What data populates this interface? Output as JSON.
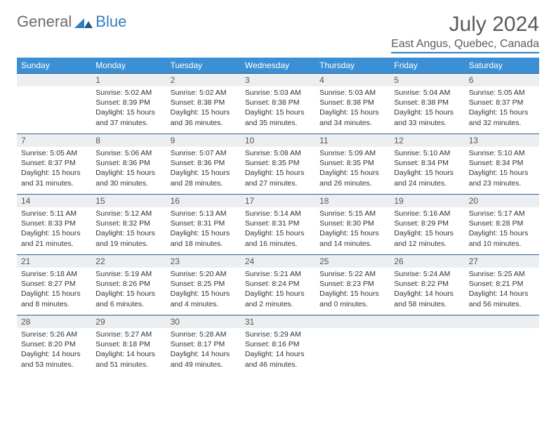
{
  "logo": {
    "general": "General",
    "blue": "Blue"
  },
  "title": "July 2024",
  "location": "East Angus, Quebec, Canada",
  "colors": {
    "header_bg": "#3b8fd4",
    "header_text": "#ffffff",
    "daynum_bg": "#eceff1",
    "border": "#2f5f8f",
    "logo_gray": "#6b6b6b",
    "logo_blue": "#2f7fbf"
  },
  "weekdays": [
    "Sunday",
    "Monday",
    "Tuesday",
    "Wednesday",
    "Thursday",
    "Friday",
    "Saturday"
  ],
  "weeks": [
    [
      {
        "n": "",
        "lines": []
      },
      {
        "n": "1",
        "lines": [
          "Sunrise: 5:02 AM",
          "Sunset: 8:39 PM",
          "Daylight: 15 hours and 37 minutes."
        ]
      },
      {
        "n": "2",
        "lines": [
          "Sunrise: 5:02 AM",
          "Sunset: 8:38 PM",
          "Daylight: 15 hours and 36 minutes."
        ]
      },
      {
        "n": "3",
        "lines": [
          "Sunrise: 5:03 AM",
          "Sunset: 8:38 PM",
          "Daylight: 15 hours and 35 minutes."
        ]
      },
      {
        "n": "4",
        "lines": [
          "Sunrise: 5:03 AM",
          "Sunset: 8:38 PM",
          "Daylight: 15 hours and 34 minutes."
        ]
      },
      {
        "n": "5",
        "lines": [
          "Sunrise: 5:04 AM",
          "Sunset: 8:38 PM",
          "Daylight: 15 hours and 33 minutes."
        ]
      },
      {
        "n": "6",
        "lines": [
          "Sunrise: 5:05 AM",
          "Sunset: 8:37 PM",
          "Daylight: 15 hours and 32 minutes."
        ]
      }
    ],
    [
      {
        "n": "7",
        "lines": [
          "Sunrise: 5:05 AM",
          "Sunset: 8:37 PM",
          "Daylight: 15 hours and 31 minutes."
        ]
      },
      {
        "n": "8",
        "lines": [
          "Sunrise: 5:06 AM",
          "Sunset: 8:36 PM",
          "Daylight: 15 hours and 30 minutes."
        ]
      },
      {
        "n": "9",
        "lines": [
          "Sunrise: 5:07 AM",
          "Sunset: 8:36 PM",
          "Daylight: 15 hours and 28 minutes."
        ]
      },
      {
        "n": "10",
        "lines": [
          "Sunrise: 5:08 AM",
          "Sunset: 8:35 PM",
          "Daylight: 15 hours and 27 minutes."
        ]
      },
      {
        "n": "11",
        "lines": [
          "Sunrise: 5:09 AM",
          "Sunset: 8:35 PM",
          "Daylight: 15 hours and 26 minutes."
        ]
      },
      {
        "n": "12",
        "lines": [
          "Sunrise: 5:10 AM",
          "Sunset: 8:34 PM",
          "Daylight: 15 hours and 24 minutes."
        ]
      },
      {
        "n": "13",
        "lines": [
          "Sunrise: 5:10 AM",
          "Sunset: 8:34 PM",
          "Daylight: 15 hours and 23 minutes."
        ]
      }
    ],
    [
      {
        "n": "14",
        "lines": [
          "Sunrise: 5:11 AM",
          "Sunset: 8:33 PM",
          "Daylight: 15 hours and 21 minutes."
        ]
      },
      {
        "n": "15",
        "lines": [
          "Sunrise: 5:12 AM",
          "Sunset: 8:32 PM",
          "Daylight: 15 hours and 19 minutes."
        ]
      },
      {
        "n": "16",
        "lines": [
          "Sunrise: 5:13 AM",
          "Sunset: 8:31 PM",
          "Daylight: 15 hours and 18 minutes."
        ]
      },
      {
        "n": "17",
        "lines": [
          "Sunrise: 5:14 AM",
          "Sunset: 8:31 PM",
          "Daylight: 15 hours and 16 minutes."
        ]
      },
      {
        "n": "18",
        "lines": [
          "Sunrise: 5:15 AM",
          "Sunset: 8:30 PM",
          "Daylight: 15 hours and 14 minutes."
        ]
      },
      {
        "n": "19",
        "lines": [
          "Sunrise: 5:16 AM",
          "Sunset: 8:29 PM",
          "Daylight: 15 hours and 12 minutes."
        ]
      },
      {
        "n": "20",
        "lines": [
          "Sunrise: 5:17 AM",
          "Sunset: 8:28 PM",
          "Daylight: 15 hours and 10 minutes."
        ]
      }
    ],
    [
      {
        "n": "21",
        "lines": [
          "Sunrise: 5:18 AM",
          "Sunset: 8:27 PM",
          "Daylight: 15 hours and 8 minutes."
        ]
      },
      {
        "n": "22",
        "lines": [
          "Sunrise: 5:19 AM",
          "Sunset: 8:26 PM",
          "Daylight: 15 hours and 6 minutes."
        ]
      },
      {
        "n": "23",
        "lines": [
          "Sunrise: 5:20 AM",
          "Sunset: 8:25 PM",
          "Daylight: 15 hours and 4 minutes."
        ]
      },
      {
        "n": "24",
        "lines": [
          "Sunrise: 5:21 AM",
          "Sunset: 8:24 PM",
          "Daylight: 15 hours and 2 minutes."
        ]
      },
      {
        "n": "25",
        "lines": [
          "Sunrise: 5:22 AM",
          "Sunset: 8:23 PM",
          "Daylight: 15 hours and 0 minutes."
        ]
      },
      {
        "n": "26",
        "lines": [
          "Sunrise: 5:24 AM",
          "Sunset: 8:22 PM",
          "Daylight: 14 hours and 58 minutes."
        ]
      },
      {
        "n": "27",
        "lines": [
          "Sunrise: 5:25 AM",
          "Sunset: 8:21 PM",
          "Daylight: 14 hours and 56 minutes."
        ]
      }
    ],
    [
      {
        "n": "28",
        "lines": [
          "Sunrise: 5:26 AM",
          "Sunset: 8:20 PM",
          "Daylight: 14 hours and 53 minutes."
        ]
      },
      {
        "n": "29",
        "lines": [
          "Sunrise: 5:27 AM",
          "Sunset: 8:18 PM",
          "Daylight: 14 hours and 51 minutes."
        ]
      },
      {
        "n": "30",
        "lines": [
          "Sunrise: 5:28 AM",
          "Sunset: 8:17 PM",
          "Daylight: 14 hours and 49 minutes."
        ]
      },
      {
        "n": "31",
        "lines": [
          "Sunrise: 5:29 AM",
          "Sunset: 8:16 PM",
          "Daylight: 14 hours and 46 minutes."
        ]
      },
      {
        "n": "",
        "lines": []
      },
      {
        "n": "",
        "lines": []
      },
      {
        "n": "",
        "lines": []
      }
    ]
  ]
}
